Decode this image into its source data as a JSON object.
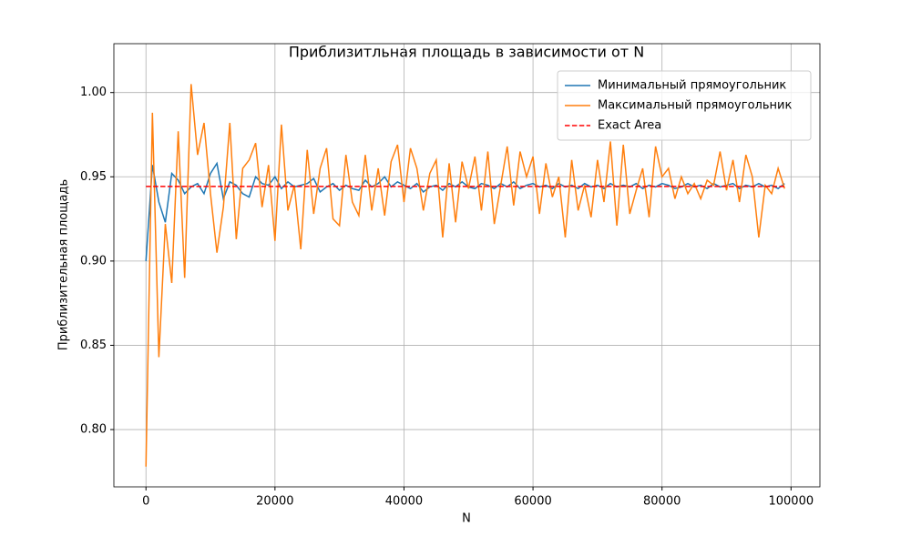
{
  "chart_data": {
    "type": "line",
    "title": "Приблизитльная площадь в зависимости от N",
    "xlabel": "N",
    "ylabel": "Приблизительная площадь",
    "x": [
      0,
      1000,
      2000,
      3000,
      4000,
      5000,
      6000,
      7000,
      8000,
      9000,
      10000,
      11000,
      12000,
      13000,
      14000,
      15000,
      16000,
      17000,
      18000,
      19000,
      20000,
      21000,
      22000,
      23000,
      24000,
      25000,
      26000,
      27000,
      28000,
      29000,
      30000,
      31000,
      32000,
      33000,
      34000,
      35000,
      36000,
      37000,
      38000,
      39000,
      40000,
      41000,
      42000,
      43000,
      44000,
      45000,
      46000,
      47000,
      48000,
      49000,
      50000,
      51000,
      52000,
      53000,
      54000,
      55000,
      56000,
      57000,
      58000,
      59000,
      60000,
      61000,
      62000,
      63000,
      64000,
      65000,
      66000,
      67000,
      68000,
      69000,
      70000,
      71000,
      72000,
      73000,
      74000,
      75000,
      76000,
      77000,
      78000,
      79000,
      80000,
      81000,
      82000,
      83000,
      84000,
      85000,
      86000,
      87000,
      88000,
      89000,
      90000,
      91000,
      92000,
      93000,
      94000,
      95000,
      96000,
      97000,
      98000,
      99000
    ],
    "series": [
      {
        "name": "Минимальный прямоугольник",
        "color": "#1f77b4",
        "dash": false,
        "values": [
          0.9,
          0.957,
          0.935,
          0.923,
          0.952,
          0.948,
          0.94,
          0.944,
          0.946,
          0.94,
          0.952,
          0.958,
          0.937,
          0.947,
          0.945,
          0.94,
          0.938,
          0.95,
          0.946,
          0.945,
          0.95,
          0.943,
          0.947,
          0.944,
          0.945,
          0.946,
          0.949,
          0.941,
          0.944,
          0.946,
          0.942,
          0.945,
          0.943,
          0.942,
          0.948,
          0.944,
          0.946,
          0.95,
          0.944,
          0.947,
          0.945,
          0.943,
          0.946,
          0.941,
          0.944,
          0.945,
          0.942,
          0.946,
          0.944,
          0.947,
          0.944,
          0.943,
          0.946,
          0.945,
          0.943,
          0.946,
          0.944,
          0.947,
          0.943,
          0.945,
          0.946,
          0.944,
          0.945,
          0.943,
          0.946,
          0.944,
          0.945,
          0.943,
          0.946,
          0.944,
          0.945,
          0.943,
          0.946,
          0.944,
          0.945,
          0.944,
          0.946,
          0.943,
          0.945,
          0.944,
          0.946,
          0.945,
          0.943,
          0.944,
          0.946,
          0.944,
          0.945,
          0.943,
          0.946,
          0.944,
          0.945,
          0.946,
          0.943,
          0.945,
          0.944,
          0.946,
          0.944,
          0.945,
          0.943,
          0.946
        ]
      },
      {
        "name": "Максимальный прямоугольник",
        "color": "#ff7f0e",
        "dash": false,
        "values": [
          0.778,
          0.988,
          0.843,
          0.922,
          0.887,
          0.977,
          0.89,
          1.005,
          0.963,
          0.982,
          0.94,
          0.905,
          0.932,
          0.982,
          0.913,
          0.955,
          0.96,
          0.97,
          0.932,
          0.957,
          0.912,
          0.981,
          0.93,
          0.945,
          0.907,
          0.966,
          0.928,
          0.955,
          0.967,
          0.925,
          0.921,
          0.963,
          0.935,
          0.927,
          0.963,
          0.93,
          0.955,
          0.927,
          0.959,
          0.969,
          0.935,
          0.967,
          0.955,
          0.93,
          0.952,
          0.96,
          0.914,
          0.958,
          0.923,
          0.959,
          0.943,
          0.962,
          0.93,
          0.965,
          0.922,
          0.945,
          0.968,
          0.933,
          0.965,
          0.95,
          0.962,
          0.928,
          0.958,
          0.938,
          0.95,
          0.914,
          0.96,
          0.93,
          0.945,
          0.926,
          0.96,
          0.935,
          0.971,
          0.921,
          0.969,
          0.928,
          0.942,
          0.955,
          0.926,
          0.968,
          0.95,
          0.955,
          0.937,
          0.95,
          0.94,
          0.946,
          0.937,
          0.948,
          0.945,
          0.965,
          0.942,
          0.96,
          0.935,
          0.963,
          0.95,
          0.914,
          0.945,
          0.94,
          0.955,
          0.943
        ]
      },
      {
        "name": "Exact Area",
        "color": "#ff0000",
        "dash": true,
        "x": [
          0,
          99000
        ],
        "values": [
          0.9443,
          0.9443
        ]
      }
    ],
    "xlim": [
      -4975,
      104475
    ],
    "ylim": [
      0.766,
      1.029
    ],
    "xticks": [
      0,
      20000,
      40000,
      60000,
      80000,
      100000
    ],
    "yticks": [
      {
        "value": 0.8,
        "label": "0.80"
      },
      {
        "value": 0.85,
        "label": "0.85"
      },
      {
        "value": 0.9,
        "label": "0.90"
      },
      {
        "value": 0.95,
        "label": "0.95"
      },
      {
        "value": 1.0,
        "label": "1.00"
      }
    ],
    "grid": true,
    "legend": "upper right"
  }
}
